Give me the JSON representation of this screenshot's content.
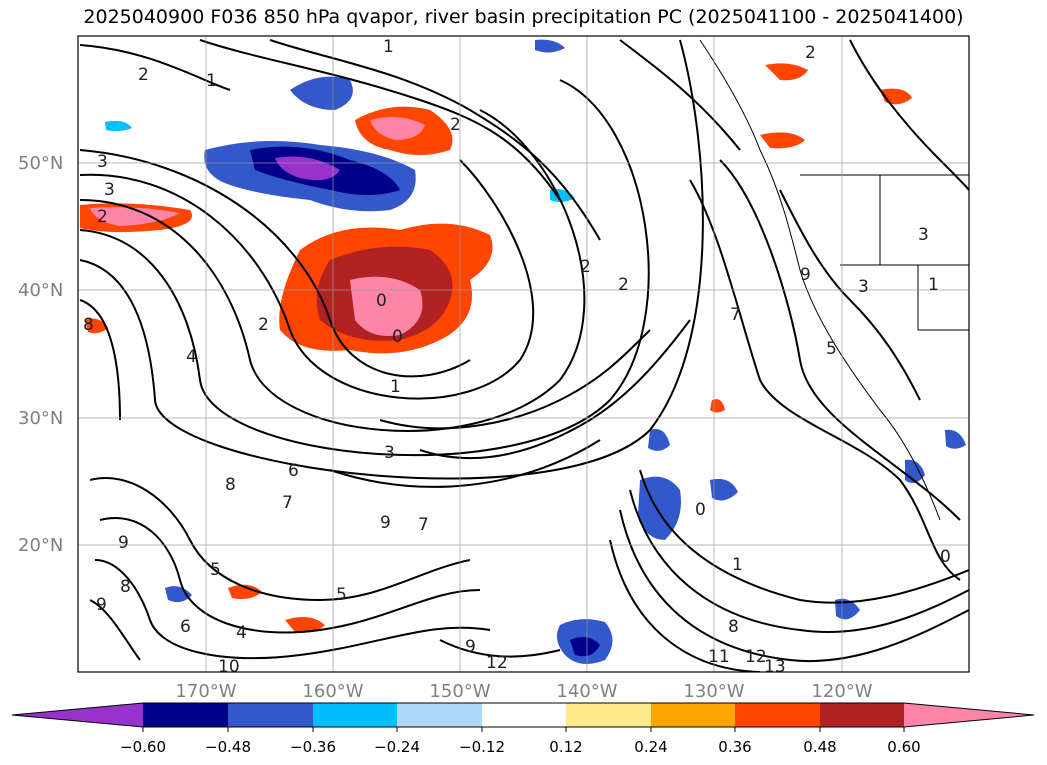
{
  "title": "2025040900 F036 850 hPa qvapor, river basin precipitation PC (2025041100 - 2025041400)",
  "map": {
    "lat_labels": [
      "50°N",
      "40°N",
      "30°N",
      "20°N"
    ],
    "lon_labels": [
      "170°W",
      "160°W",
      "150°W",
      "140°W",
      "130°W",
      "120°W"
    ],
    "contour_labels": [
      "2",
      "1",
      "1",
      "2",
      "3",
      "3",
      "2",
      "2",
      "2",
      "2",
      "2",
      "0",
      "0",
      "1",
      "1",
      "8",
      "4",
      "3",
      "6",
      "8",
      "7",
      "7",
      "9",
      "9",
      "8",
      "5",
      "9",
      "5",
      "4",
      "6",
      "10",
      "9",
      "12",
      "11",
      "12",
      "13",
      "1",
      "0",
      "3",
      "8",
      "7",
      "5",
      "9",
      "3",
      "0"
    ]
  },
  "colorbar": {
    "tick_labels": [
      "−0.60",
      "−0.48",
      "−0.36",
      "−0.24",
      "−0.12",
      "0.12",
      "0.24",
      "0.36",
      "0.48",
      "0.60"
    ],
    "colors": [
      "#9932cc",
      "#00008b",
      "#3358cc",
      "#00bfff",
      "#add8f5",
      "#ffffff",
      "#ffe98a",
      "#ffa500",
      "#ff4500",
      "#b22222",
      "#ff85a8"
    ]
  }
}
